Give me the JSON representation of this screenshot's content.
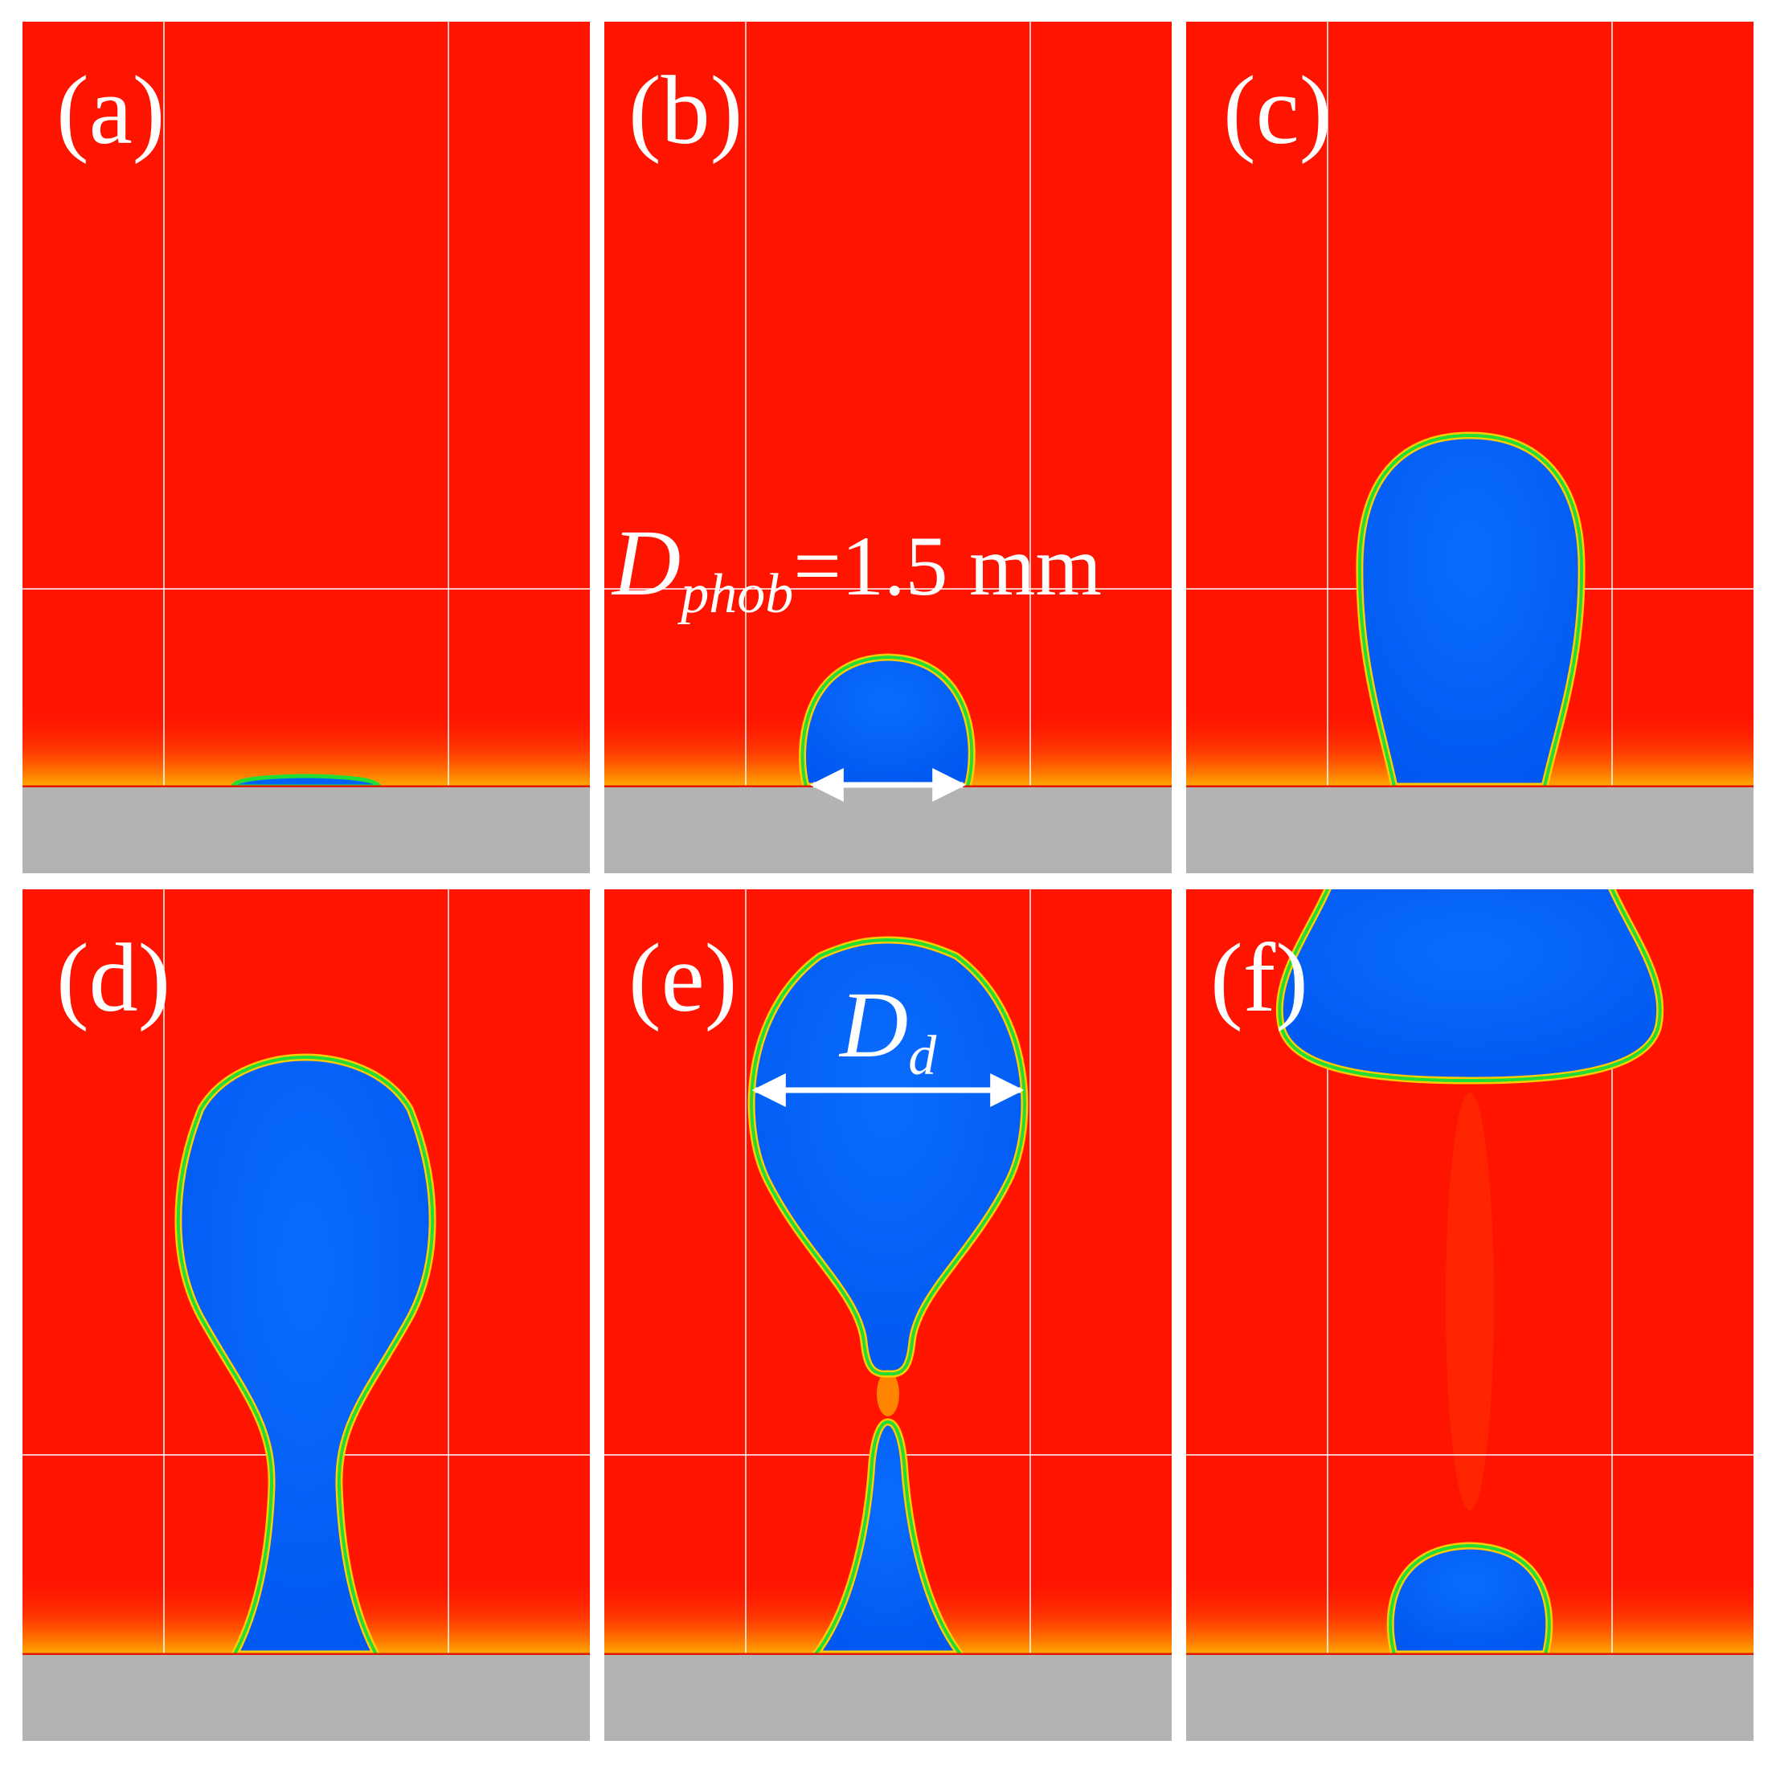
{
  "figure": {
    "panels": [
      {
        "id": "a",
        "label": "(a)",
        "stage": "thin-film"
      },
      {
        "id": "b",
        "label": "(b)",
        "stage": "cap"
      },
      {
        "id": "c",
        "label": "(c)",
        "stage": "column"
      },
      {
        "id": "d",
        "label": "(d)",
        "stage": "necking"
      },
      {
        "id": "e",
        "label": "(e)",
        "stage": "pinch-off"
      },
      {
        "id": "f",
        "label": "(f)",
        "stage": "detached"
      }
    ],
    "annotations": {
      "dphob": {
        "symbol": "D",
        "subscript": "phob",
        "value_text": "=1.5 mm"
      },
      "dd": {
        "symbol": "D",
        "subscript": "d"
      }
    },
    "colors": {
      "background_fluid": "#ff1400",
      "droplet": "#0062fb",
      "substrate": "#b3b3b3",
      "interface_outer": "#ffcc00",
      "interface_mid": "#22dd33",
      "annotation": "#ffffff"
    }
  }
}
